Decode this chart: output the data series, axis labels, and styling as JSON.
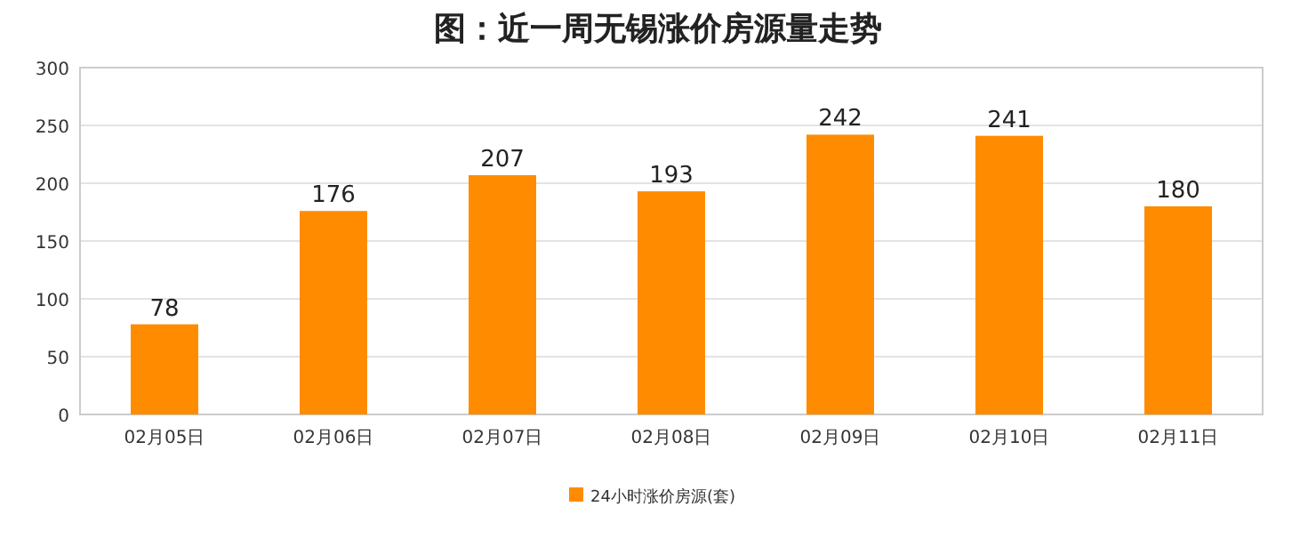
{
  "chart_data": {
    "type": "bar",
    "title": "图：近一周无锡涨价房源量走势",
    "categories": [
      "02月05日",
      "02月06日",
      "02月07日",
      "02月08日",
      "02月09日",
      "02月10日",
      "02月11日"
    ],
    "series": [
      {
        "name": "24小时涨价房源(套)",
        "color": "#ff8c00",
        "values": [
          78,
          176,
          207,
          193,
          242,
          241,
          180
        ]
      }
    ],
    "ylim": [
      0,
      300
    ],
    "yticks": [
      0,
      50,
      100,
      150,
      200,
      250,
      300
    ],
    "grid": "y",
    "legend": "bottom",
    "data_labels": true
  }
}
